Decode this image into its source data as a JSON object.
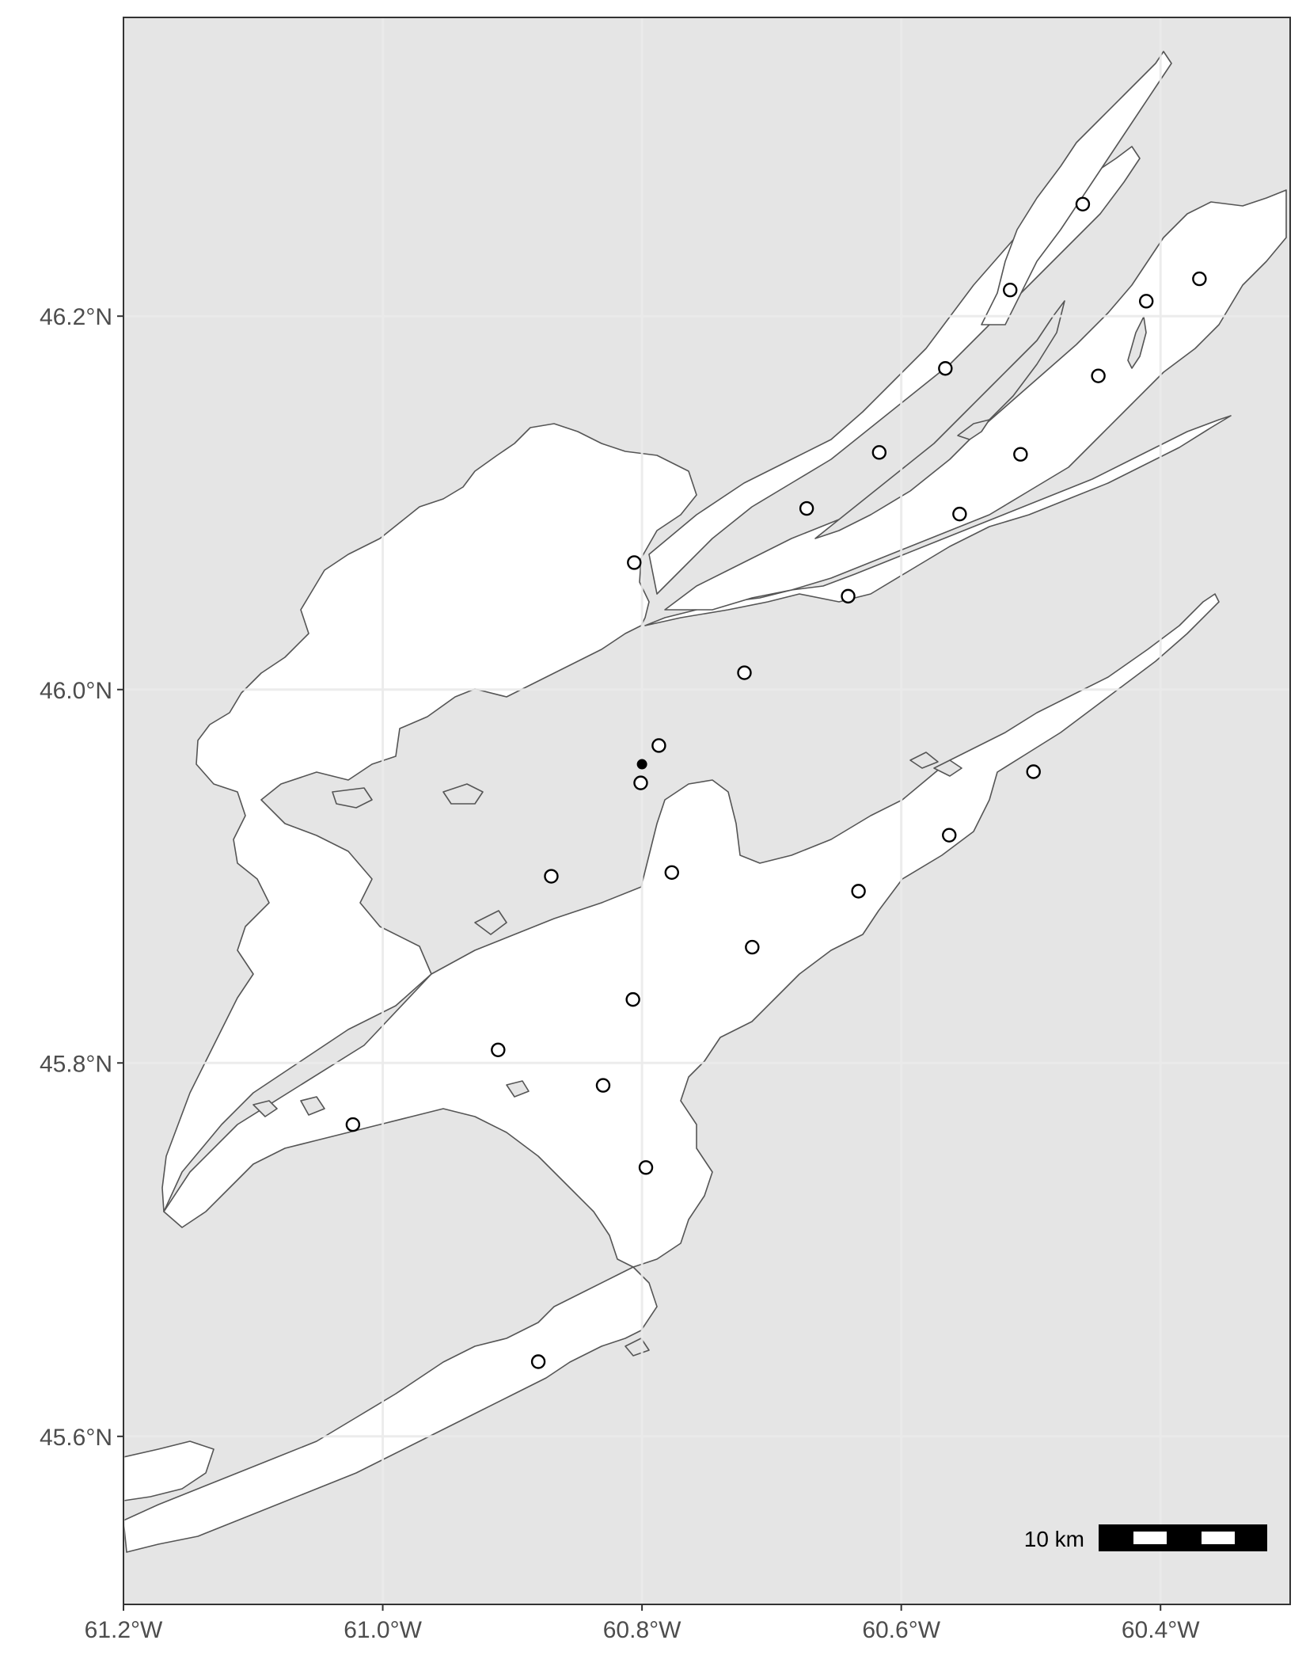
{
  "map": {
    "x_ticks": [
      "61.2°W",
      "61.0°W",
      "60.8°W",
      "60.6°W",
      "60.4°W"
    ],
    "y_ticks": [
      "46.2°N",
      "46.0°N",
      "45.8°N",
      "45.6°N"
    ],
    "scale_bar": {
      "label": "10 km"
    },
    "colors": {
      "land": "#e5e5e5",
      "water": "#ffffff",
      "coast": "#555555",
      "grid": "#ebebeb",
      "frame": "#333333"
    }
  },
  "chart_data": {
    "type": "scatter",
    "xlim": [
      -61.2,
      -60.3
    ],
    "ylim": [
      45.51,
      46.36
    ],
    "x_unit": "degrees longitude",
    "y_unit": "degrees latitude",
    "grid": true,
    "series": [
      {
        "marker": "open-circle",
        "points": [
          {
            "x": -60.46,
            "y": 46.26
          },
          {
            "x": -60.516,
            "y": 46.214
          },
          {
            "x": -60.411,
            "y": 46.208
          },
          {
            "x": -60.37,
            "y": 46.22
          },
          {
            "x": -60.566,
            "y": 46.172
          },
          {
            "x": -60.448,
            "y": 46.168
          },
          {
            "x": -60.617,
            "y": 46.127
          },
          {
            "x": -60.508,
            "y": 46.126
          },
          {
            "x": -60.673,
            "y": 46.097
          },
          {
            "x": -60.555,
            "y": 46.094
          },
          {
            "x": -60.806,
            "y": 46.068
          },
          {
            "x": -60.641,
            "y": 46.05
          },
          {
            "x": -60.721,
            "y": 46.009
          },
          {
            "x": -60.787,
            "y": 45.97
          },
          {
            "x": -60.801,
            "y": 45.95
          },
          {
            "x": -60.498,
            "y": 45.956
          },
          {
            "x": -60.563,
            "y": 45.922
          },
          {
            "x": -60.87,
            "y": 45.9
          },
          {
            "x": -60.777,
            "y": 45.902
          },
          {
            "x": -60.633,
            "y": 45.892
          },
          {
            "x": -60.715,
            "y": 45.862
          },
          {
            "x": -60.807,
            "y": 45.834
          },
          {
            "x": -60.911,
            "y": 45.807
          },
          {
            "x": -60.83,
            "y": 45.788
          },
          {
            "x": -61.023,
            "y": 45.767
          },
          {
            "x": -60.797,
            "y": 45.744
          },
          {
            "x": -60.88,
            "y": 45.64
          }
        ]
      },
      {
        "marker": "filled-circle",
        "points": [
          {
            "x": -60.8,
            "y": 45.96
          }
        ]
      }
    ]
  }
}
